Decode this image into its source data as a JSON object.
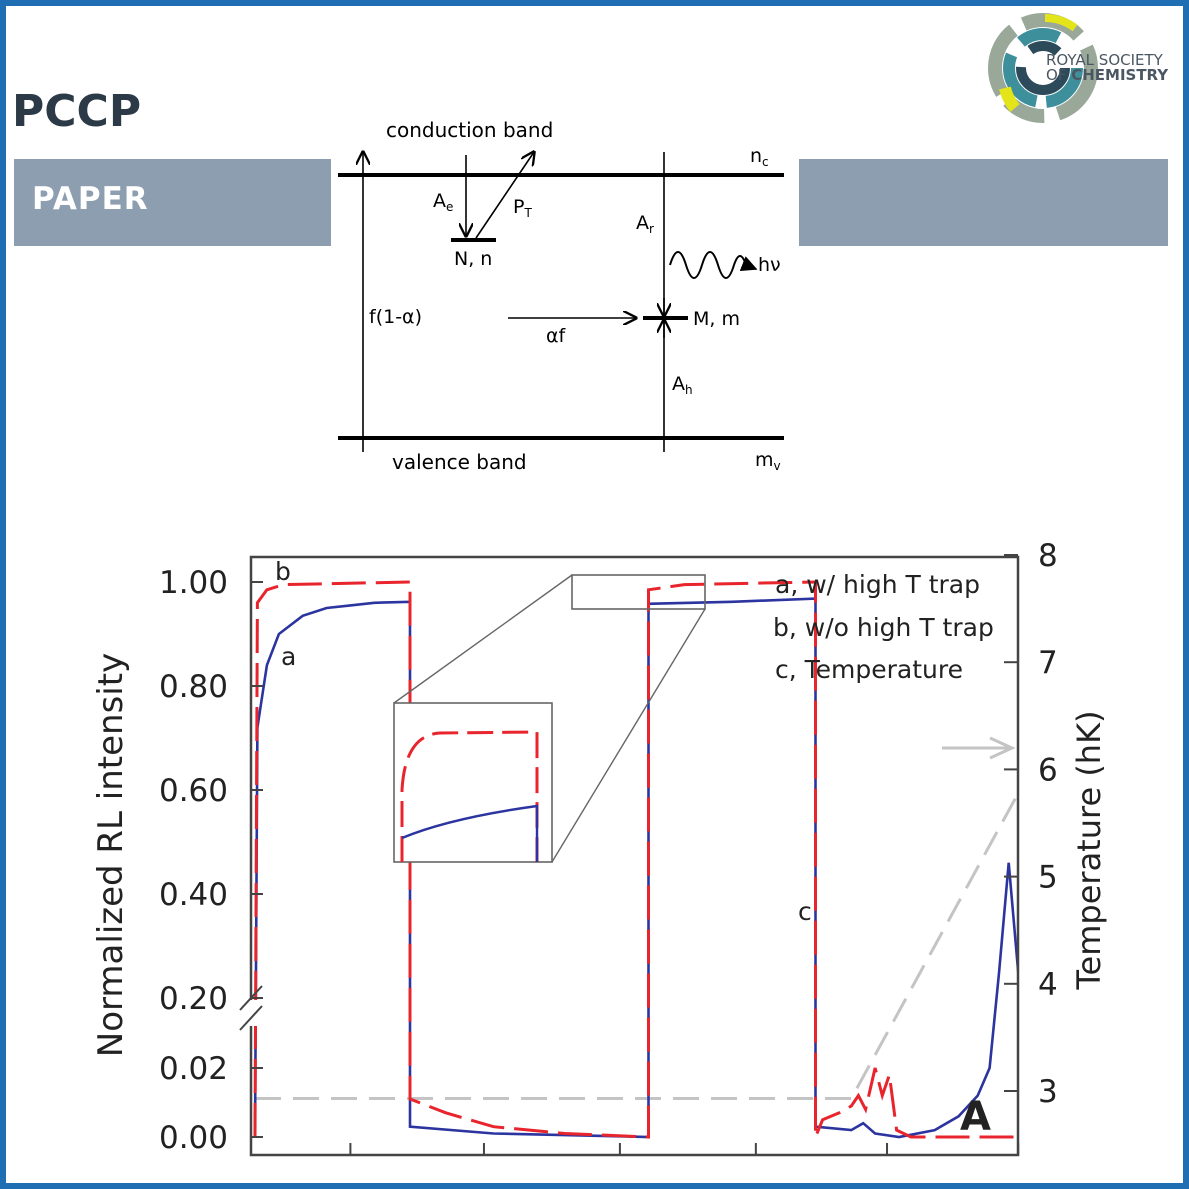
{
  "header": {
    "journal": "PCCP",
    "section": "PAPER",
    "publisher_line1": "ROYAL SOCIETY",
    "publisher_line2_prefix": "OF ",
    "publisher_line2_bold": "CHEMISTRY"
  },
  "band_diagram": {
    "conduction_band": "conduction band",
    "valence_band": "valence band",
    "nc": "n",
    "nc_sub": "c",
    "mv": "m",
    "mv_sub": "v",
    "Ae": "A",
    "Ae_sub": "e",
    "PT": "P",
    "PT_sub": "T",
    "Ar": "A",
    "Ar_sub": "r",
    "Ah": "A",
    "Ah_sub": "h",
    "trap_N": "N, n",
    "center_M": "M, m",
    "hv": "hν",
    "f_alpha": "f(1-α)",
    "alpha_f": "αf"
  },
  "chart_data": {
    "type": "line",
    "ylabel": "Normalized RL intensity",
    "y2label": "Temperature (hK)",
    "panel_label": "A",
    "yticks": [
      "0.00",
      "0.02",
      "0.20",
      "0.40",
      "0.60",
      "0.80",
      "1.00"
    ],
    "y2ticks": [
      "3",
      "4",
      "5",
      "6",
      "7",
      "8"
    ],
    "y2lim": [
      2.5,
      8
    ],
    "legend": [
      "a, w/ high T trap",
      "b, w/o high T trap",
      "c, Temperature"
    ],
    "curve_labels": {
      "a": "a",
      "b": "b",
      "c": "c"
    },
    "axis_break": "broken y-axis between 0.02 and 0.20",
    "x_range_time_units": [
      0,
      28
    ],
    "series": [
      {
        "name": "a, w/ high T trap",
        "color": "#2c34a0",
        "points": [
          [
            0,
            0
          ],
          [
            0.1,
            0.72
          ],
          [
            0.5,
            0.84
          ],
          [
            1,
            0.9
          ],
          [
            2,
            0.935
          ],
          [
            3,
            0.95
          ],
          [
            4,
            0.955
          ],
          [
            5,
            0.96
          ],
          [
            6.5,
            0.962
          ],
          [
            6.5,
            0.003
          ],
          [
            10,
            0.001
          ],
          [
            16.5,
            0.0
          ],
          [
            16.5,
            0.958
          ],
          [
            20,
            0.962
          ],
          [
            23.5,
            0.968
          ],
          [
            23.5,
            0.003
          ],
          [
            25,
            0.002
          ],
          [
            25.5,
            0.004
          ],
          [
            26,
            0.001
          ],
          [
            27,
            0.0
          ],
          [
            28.5,
            0.002
          ],
          [
            29.5,
            0.006
          ],
          [
            30.3,
            0.012
          ],
          [
            30.8,
            0.02
          ],
          [
            31.2,
            0.25
          ],
          [
            31.6,
            0.46
          ],
          [
            32.0,
            0.25
          ],
          [
            32.4,
            0.02
          ],
          [
            33,
            0.008
          ],
          [
            33.5,
            0.002
          ],
          [
            35,
            0.0
          ]
        ]
      },
      {
        "name": "b, w/o high T trap",
        "color": "#e8242c",
        "points": [
          [
            0,
            0
          ],
          [
            0.1,
            0.96
          ],
          [
            0.5,
            0.985
          ],
          [
            1.2,
            0.995
          ],
          [
            6.5,
            1.0
          ],
          [
            6.5,
            0.011
          ],
          [
            8,
            0.007
          ],
          [
            10,
            0.003
          ],
          [
            13,
            0.001
          ],
          [
            16.5,
            0.0
          ],
          [
            16.5,
            0.985
          ],
          [
            18,
            0.995
          ],
          [
            23.5,
            1.0
          ],
          [
            23.5,
            0.0
          ],
          [
            23.8,
            0.005
          ],
          [
            24.5,
            0.007
          ],
          [
            25,
            0.009
          ],
          [
            25.3,
            0.012
          ],
          [
            25.6,
            0.008
          ],
          [
            26,
            0.02
          ],
          [
            26.3,
            0.012
          ],
          [
            26.6,
            0.018
          ],
          [
            26.9,
            0.002
          ],
          [
            27.5,
            0.0
          ],
          [
            35,
            0.0
          ]
        ]
      },
      {
        "name": "c, Temperature",
        "color": "#c4c4c4",
        "points": [
          [
            0,
            2.93
          ],
          [
            25,
            2.93
          ],
          [
            35,
            7.0
          ]
        ]
      }
    ],
    "inset": "zoom of region 16.5–23.5 at intensity ~0.95–1.00"
  }
}
